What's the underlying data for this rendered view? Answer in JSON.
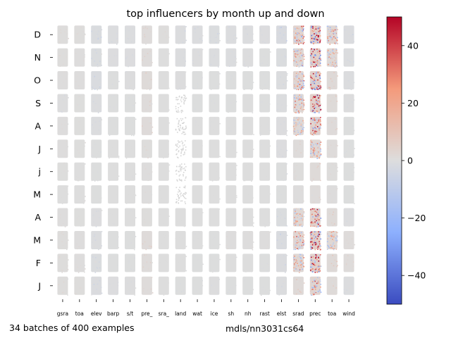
{
  "chart_data": {
    "type": "heatmap",
    "title": "top influencers by month  up and down",
    "x_categories": [
      "gsra",
      "toa",
      "elev",
      "barp",
      "s/t",
      "pre_",
      "sra_",
      "land",
      "wat",
      "ice",
      "sh",
      "nh",
      "rast",
      "elst",
      "srad",
      "prec",
      "toa",
      "wind"
    ],
    "y_categories": [
      "D",
      "N",
      "O",
      "S",
      "A",
      "J",
      "j",
      "M",
      "A",
      "M",
      "F",
      "J"
    ],
    "colorbar": {
      "min": -50,
      "max": 50,
      "ticks": [
        40,
        20,
        0,
        -20,
        -40
      ],
      "colormap": "coolwarm"
    },
    "intensity_estimate": [
      [
        0.6,
        0.5,
        -1.4,
        -0.8,
        -0.6,
        1.0,
        0.5,
        -0.9,
        -0.8,
        -1.0,
        -0.8,
        -0.7,
        -0.5,
        -2.0,
        4.0,
        6.5,
        3.0,
        -1.2
      ],
      [
        0.5,
        0.4,
        -1.0,
        -0.5,
        -0.5,
        1.0,
        0.0,
        -0.6,
        -0.4,
        -0.6,
        -0.6,
        -0.4,
        -0.3,
        -1.0,
        3.0,
        6.0,
        2.5,
        -0.8
      ],
      [
        0.4,
        0.3,
        -1.5,
        -0.3,
        -0.4,
        1.5,
        0.0,
        -0.4,
        -0.3,
        -0.3,
        -0.3,
        -0.2,
        -0.2,
        -0.8,
        3.5,
        6.0,
        2.0,
        -0.6
      ],
      [
        -0.4,
        0.2,
        -0.8,
        -0.3,
        -0.3,
        1.0,
        0.0,
        0.0,
        -0.2,
        -0.2,
        -0.2,
        -0.1,
        -0.2,
        -0.6,
        3.0,
        6.0,
        1.5,
        -0.4
      ],
      [
        0.3,
        0.2,
        -0.6,
        -0.2,
        -0.2,
        1.2,
        0.0,
        0.0,
        -0.1,
        -0.1,
        -0.1,
        0.0,
        -0.1,
        -0.5,
        2.5,
        5.0,
        1.2,
        -0.3
      ],
      [
        0.3,
        0.2,
        -0.3,
        0.0,
        -0.1,
        0.6,
        0.0,
        0.0,
        0.0,
        0.0,
        -0.1,
        0.0,
        -0.1,
        -0.5,
        1.0,
        3.0,
        0.8,
        -0.3
      ],
      [
        0.2,
        0.1,
        -0.2,
        0.0,
        -0.1,
        0.4,
        0.0,
        0.0,
        0.0,
        0.0,
        0.0,
        0.0,
        0.0,
        -0.3,
        0.5,
        1.5,
        0.5,
        -0.2
      ],
      [
        0.1,
        0.1,
        -0.2,
        0.0,
        0.0,
        0.3,
        0.0,
        0.0,
        0.0,
        0.0,
        0.0,
        0.0,
        0.0,
        -0.2,
        0.4,
        1.0,
        0.4,
        -0.2
      ],
      [
        0.3,
        0.2,
        -0.5,
        -0.1,
        -0.1,
        0.6,
        0.0,
        0.0,
        0.0,
        0.0,
        0.0,
        0.0,
        -0.1,
        -1.0,
        2.5,
        5.0,
        1.5,
        -0.5
      ],
      [
        0.5,
        0.3,
        -0.8,
        -0.2,
        -0.2,
        1.2,
        0.0,
        0.0,
        -0.1,
        -0.2,
        0.4,
        0.3,
        0.3,
        -1.5,
        3.5,
        6.5,
        2.5,
        0.8
      ],
      [
        0.5,
        0.4,
        -1.0,
        -0.3,
        -0.3,
        1.0,
        0.0,
        -0.1,
        -0.2,
        -0.2,
        -0.1,
        0.0,
        -0.2,
        -1.2,
        3.0,
        5.5,
        2.0,
        1.0
      ],
      [
        0.6,
        0.5,
        -1.2,
        -0.5,
        -0.4,
        1.0,
        0.0,
        -0.3,
        -0.2,
        -0.4,
        -0.3,
        -0.2,
        -0.2,
        -0.8,
        2.0,
        4.0,
        1.5,
        -0.6
      ]
    ]
  },
  "footer_left": "34 batches of 400 examples",
  "footer_right": "mdls/nn3031cs64"
}
